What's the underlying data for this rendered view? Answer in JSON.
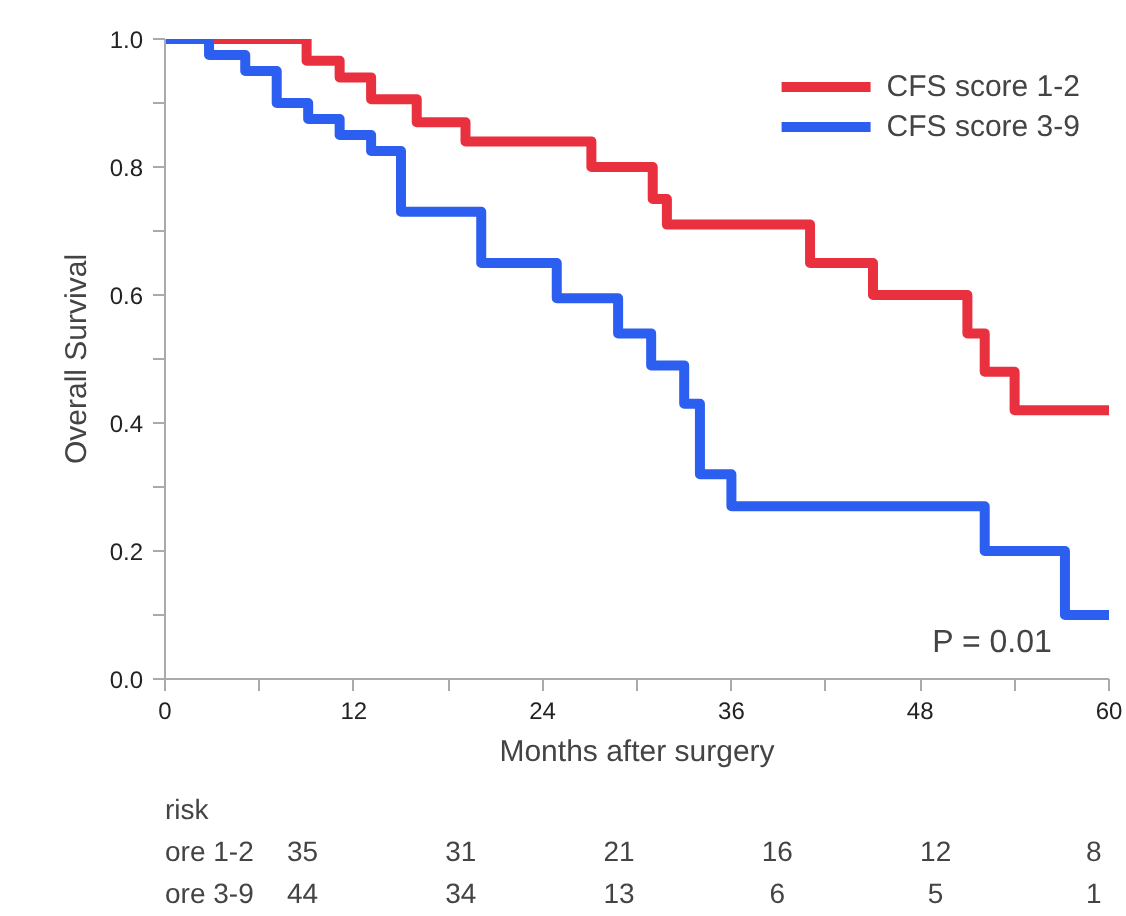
{
  "chart_data": {
    "type": "step",
    "xlabel": "Months after surgery",
    "ylabel": "Overall Survival",
    "xlim": [
      0,
      60
    ],
    "ylim": [
      0,
      1
    ],
    "xticks": [
      0,
      {
        "value": 6,
        "label": null
      },
      12,
      {
        "value": 18,
        "label": null
      },
      24,
      {
        "value": 30,
        "label": null
      },
      36,
      {
        "value": 42,
        "label": null
      },
      48,
      {
        "value": 54,
        "label": null
      },
      60
    ],
    "yticks": [
      {
        "value": 0,
        "label": "0.0"
      },
      {
        "value": 0.1,
        "label": null
      },
      {
        "value": 0.2,
        "label": "0.2"
      },
      {
        "value": 0.3,
        "label": null
      },
      {
        "value": 0.4,
        "label": "0.4"
      },
      {
        "value": 0.5,
        "label": null
      },
      {
        "value": 0.6,
        "label": "0.6"
      },
      {
        "value": 0.7,
        "label": null
      },
      {
        "value": 0.8,
        "label": "0.8"
      },
      {
        "value": 0.9,
        "label": null
      },
      {
        "value": 1,
        "label": "1.0"
      }
    ],
    "grid": false,
    "legend": "top right",
    "marker": "none",
    "line_style": "solid",
    "series": [
      {
        "name": "CFS score 1-2",
        "color": "#e8303f",
        "x": [
          0,
          9,
          11.1,
          13.1,
          16,
          19.1,
          27.1,
          31,
          31.9,
          41,
          45,
          51,
          52.1,
          54,
          60
        ],
        "values": [
          1,
          0.966,
          0.94,
          0.906,
          0.87,
          0.84,
          0.8,
          0.75,
          0.71,
          0.65,
          0.6,
          0.54,
          0.48,
          0.42,
          0.42
        ]
      },
      {
        "name": "CFS score 3-9",
        "color": "#2c5ef0",
        "x": [
          0,
          2.8,
          5.1,
          7.1,
          9.1,
          11.1,
          13.1,
          15,
          20.1,
          24.9,
          28.8,
          30.9,
          33,
          34,
          36,
          52.1,
          57.2,
          60
        ],
        "values": [
          1,
          0.975,
          0.95,
          0.9,
          0.875,
          0.85,
          0.825,
          0.73,
          0.65,
          0.595,
          0.54,
          0.49,
          0.43,
          0.32,
          0.27,
          0.2,
          0.1,
          0.1
        ]
      }
    ],
    "annotations": [
      "P = 0.01",
      "risk",
      "ore 1-2",
      "35",
      "31",
      "21",
      "16",
      "12",
      "8",
      "ore 3-9",
      "44",
      "34",
      "13",
      "6",
      "5",
      "1"
    ]
  }
}
